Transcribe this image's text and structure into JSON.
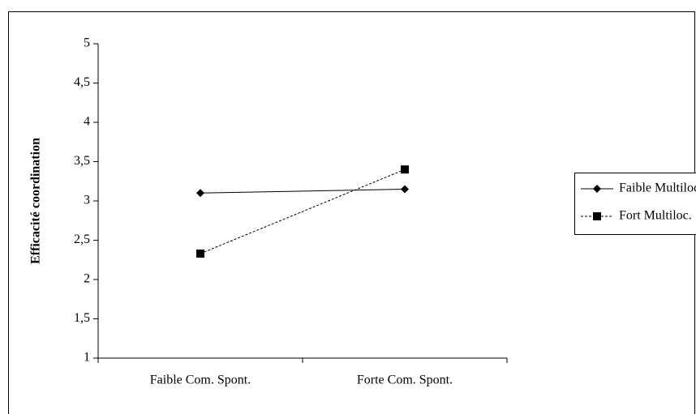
{
  "chart_data": {
    "type": "line",
    "y_label": "Efficacité  coordination",
    "categories": [
      "Faible Com. Spont.",
      "Forte Com. Spont."
    ],
    "series": [
      {
        "name": "Faible Multiloc.",
        "color": "#000000",
        "dash": false,
        "marker": "diamond",
        "values": [
          3.1,
          3.15
        ]
      },
      {
        "name": "Fort Multiloc.",
        "color": "#000000",
        "dash": true,
        "marker": "square",
        "values": [
          2.33,
          3.4
        ]
      }
    ],
    "ylim": [
      1,
      5
    ],
    "yticks": [
      1,
      {
        "value": 1.5,
        "label": "1,5"
      },
      2,
      {
        "value": 2.5,
        "label": "2,5"
      },
      3,
      {
        "value": 3.5,
        "label": "3,5"
      },
      4,
      {
        "value": 4.5,
        "label": "4,5"
      },
      5
    ],
    "grid": false,
    "legend": "right"
  }
}
